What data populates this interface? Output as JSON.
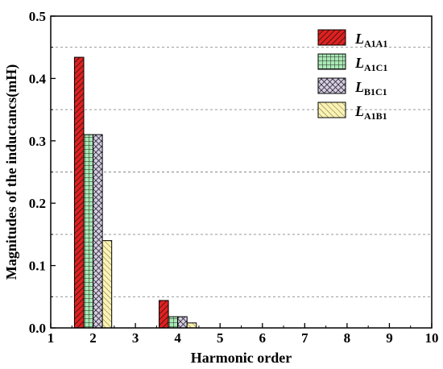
{
  "chart_data": {
    "type": "bar",
    "xlabel": "Harmonic order",
    "ylabel": "Magnitudes of the inductancs(mH)",
    "x_ticks": [
      "1",
      "2",
      "3",
      "4",
      "5",
      "6",
      "7",
      "8",
      "9",
      "10"
    ],
    "y_ticks": [
      "0.0",
      "0.1",
      "0.2",
      "0.3",
      "0.4",
      "0.5"
    ],
    "xlim": [
      1,
      10
    ],
    "ylim": [
      0,
      0.5
    ],
    "dashed_gridlines_y": [
      0.05,
      0.15,
      0.25,
      0.35,
      0.45
    ],
    "legend_placement": "top-right",
    "categories": [
      2,
      4
    ],
    "series": [
      {
        "name_main": "L",
        "name_sub": "A1A1",
        "color": "#e02020",
        "hatch": "diagonal",
        "values": [
          0.434,
          0.044
        ]
      },
      {
        "name_main": "L",
        "name_sub": "A1C1",
        "color": "#a8e8b4",
        "hatch": "grid",
        "values": [
          0.31,
          0.018
        ]
      },
      {
        "name_main": "L",
        "name_sub": "B1C1",
        "color": "#d8cde8",
        "hatch": "crosshatch",
        "values": [
          0.31,
          0.018
        ]
      },
      {
        "name_main": "L",
        "name_sub": "A1B1",
        "color": "#fbf3b0",
        "hatch": "backdiagonal",
        "values": [
          0.14,
          0.008
        ]
      }
    ]
  }
}
